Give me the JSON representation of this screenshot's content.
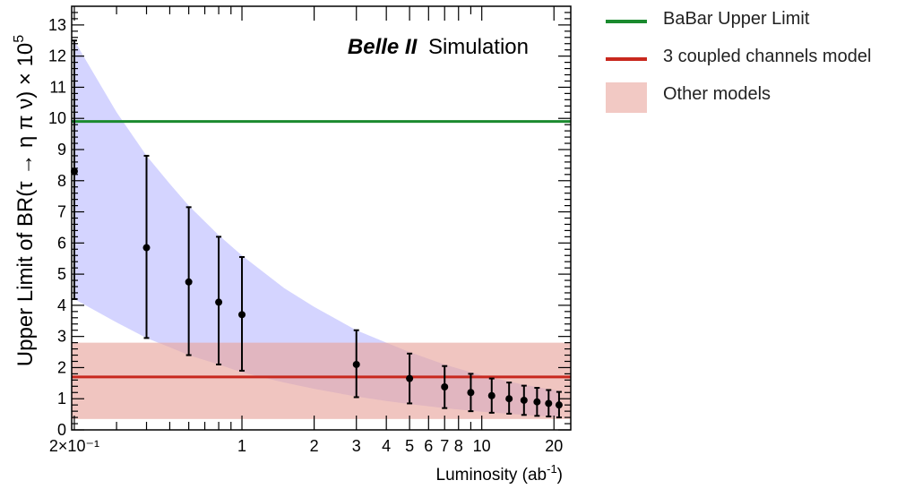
{
  "chart_data": {
    "type": "scatter",
    "annotation": {
      "bold": "Belle II",
      "normal": "Simulation"
    },
    "ylabel": "Upper Limit of BR(τ → η π ν) × 10",
    "ylabel_exponent": "5",
    "xlabel": "Luminosity (ab",
    "xlabel_exponent": "-1",
    "xlabel_suffix": ")",
    "x_scale": "log",
    "xlim": [
      0.195,
      23.5
    ],
    "ylim": [
      0,
      13.6
    ],
    "y_ticks": [
      "0",
      "1",
      "2",
      "3",
      "4",
      "5",
      "6",
      "7",
      "8",
      "9",
      "10",
      "11",
      "12",
      "13"
    ],
    "x_ticks": [
      {
        "value": 0.2,
        "label": "2×10⁻¹"
      },
      {
        "value": 1,
        "label": "1"
      },
      {
        "value": 2,
        "label": "2"
      },
      {
        "value": 3,
        "label": "3"
      },
      {
        "value": 4,
        "label": "4"
      },
      {
        "value": 5,
        "label": "5"
      },
      {
        "value": 6,
        "label": "6"
      },
      {
        "value": 7,
        "label": "7"
      },
      {
        "value": 8,
        "label": "8"
      },
      {
        "value": 10,
        "label": "10"
      },
      {
        "value": 20,
        "label": "20"
      }
    ],
    "points": [
      {
        "x": 0.2,
        "y": 8.3,
        "low": 4.2,
        "high": 12.5
      },
      {
        "x": 0.4,
        "y": 5.85,
        "low": 2.95,
        "high": 8.8
      },
      {
        "x": 0.6,
        "y": 4.75,
        "low": 2.4,
        "high": 7.15
      },
      {
        "x": 0.8,
        "y": 4.1,
        "low": 2.1,
        "high": 6.2
      },
      {
        "x": 1.0,
        "y": 3.7,
        "low": 1.9,
        "high": 5.55
      },
      {
        "x": 3.0,
        "y": 2.1,
        "low": 1.05,
        "high": 3.2
      },
      {
        "x": 5.0,
        "y": 1.65,
        "low": 0.85,
        "high": 2.45
      },
      {
        "x": 7.0,
        "y": 1.38,
        "low": 0.7,
        "high": 2.05
      },
      {
        "x": 9.0,
        "y": 1.2,
        "low": 0.6,
        "high": 1.8
      },
      {
        "x": 11.0,
        "y": 1.1,
        "low": 0.55,
        "high": 1.65
      },
      {
        "x": 13.0,
        "y": 1.0,
        "low": 0.52,
        "high": 1.52
      },
      {
        "x": 15.0,
        "y": 0.95,
        "low": 0.48,
        "high": 1.42
      },
      {
        "x": 17.0,
        "y": 0.9,
        "low": 0.45,
        "high": 1.35
      },
      {
        "x": 19.0,
        "y": 0.85,
        "low": 0.43,
        "high": 1.28
      },
      {
        "x": 21.0,
        "y": 0.8,
        "low": 0.4,
        "high": 1.22
      }
    ],
    "band": {
      "x": [
        0.2,
        0.3,
        0.4,
        0.5,
        0.6,
        0.8,
        1.0,
        1.5,
        2.0,
        3.0,
        4.0,
        5.0,
        7.0,
        10.0,
        15.0,
        21.0
      ],
      "upper": [
        12.5,
        10.2,
        8.8,
        7.9,
        7.2,
        6.25,
        5.6,
        4.55,
        3.95,
        3.2,
        2.8,
        2.5,
        2.1,
        1.75,
        1.45,
        1.25
      ],
      "lower": [
        4.2,
        3.45,
        2.95,
        2.65,
        2.4,
        2.1,
        1.85,
        1.52,
        1.32,
        1.07,
        0.93,
        0.83,
        0.7,
        0.58,
        0.48,
        0.41
      ],
      "color": "#9999ff"
    },
    "hlines": [
      {
        "y": 9.9,
        "color": "#1a8a2e"
      },
      {
        "y": 1.7,
        "color": "#c8281e"
      }
    ],
    "hband": {
      "low": 0.35,
      "high": 2.8,
      "color": "#e8a69e"
    },
    "legend": [
      {
        "type": "line",
        "label": "BaBar Upper Limit",
        "color": "#1a8a2e"
      },
      {
        "type": "line",
        "label": "3 coupled channels model",
        "color": "#c8281e"
      },
      {
        "type": "box",
        "label": "Other models",
        "color": "#f2c9c4"
      }
    ]
  }
}
